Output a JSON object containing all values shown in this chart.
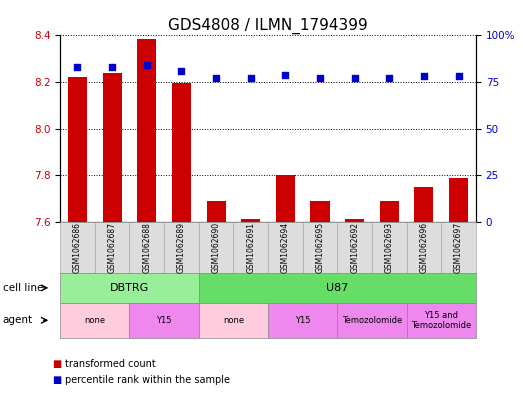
{
  "title": "GDS4808 / ILMN_1794399",
  "samples": [
    "GSM1062686",
    "GSM1062687",
    "GSM1062688",
    "GSM1062689",
    "GSM1062690",
    "GSM1062691",
    "GSM1062694",
    "GSM1062695",
    "GSM1062692",
    "GSM1062693",
    "GSM1062696",
    "GSM1062697"
  ],
  "red_values": [
    8.22,
    8.24,
    8.385,
    8.195,
    7.69,
    7.615,
    7.8,
    7.69,
    7.615,
    7.69,
    7.75,
    7.79
  ],
  "blue_values": [
    83,
    83,
    84,
    81,
    77,
    77,
    79,
    77,
    77,
    77,
    78,
    78
  ],
  "ylim_left": [
    7.6,
    8.4
  ],
  "ylim_right": [
    0,
    100
  ],
  "yticks_left": [
    7.6,
    7.8,
    8.0,
    8.2,
    8.4
  ],
  "yticks_right": [
    0,
    25,
    50,
    75,
    100
  ],
  "ytick_labels_right": [
    "0",
    "25",
    "50",
    "75",
    "100%"
  ],
  "red_color": "#cc0000",
  "blue_color": "#0000cc",
  "bar_width": 0.55,
  "cell_line_groups": [
    {
      "label": "DBTRG",
      "start": 0,
      "end": 4,
      "color": "#99ee99"
    },
    {
      "label": "U87",
      "start": 4,
      "end": 12,
      "color": "#66dd66"
    }
  ],
  "agent_groups": [
    {
      "label": "none",
      "start": 0,
      "end": 2,
      "color": "#ffccdd"
    },
    {
      "label": "Y15",
      "start": 2,
      "end": 4,
      "color": "#ee88ee"
    },
    {
      "label": "none",
      "start": 4,
      "end": 6,
      "color": "#ffccdd"
    },
    {
      "label": "Y15",
      "start": 6,
      "end": 8,
      "color": "#ee88ee"
    },
    {
      "label": "Temozolomide",
      "start": 8,
      "end": 10,
      "color": "#ee88ee"
    },
    {
      "label": "Y15 and\nTemozolomide",
      "start": 10,
      "end": 12,
      "color": "#ee88ee"
    }
  ],
  "legend_red": "transformed count",
  "legend_blue": "percentile rank within the sample",
  "grid_color": "black",
  "background_color": "white",
  "title_fontsize": 11,
  "tick_fontsize": 7.5,
  "label_fontsize": 8
}
